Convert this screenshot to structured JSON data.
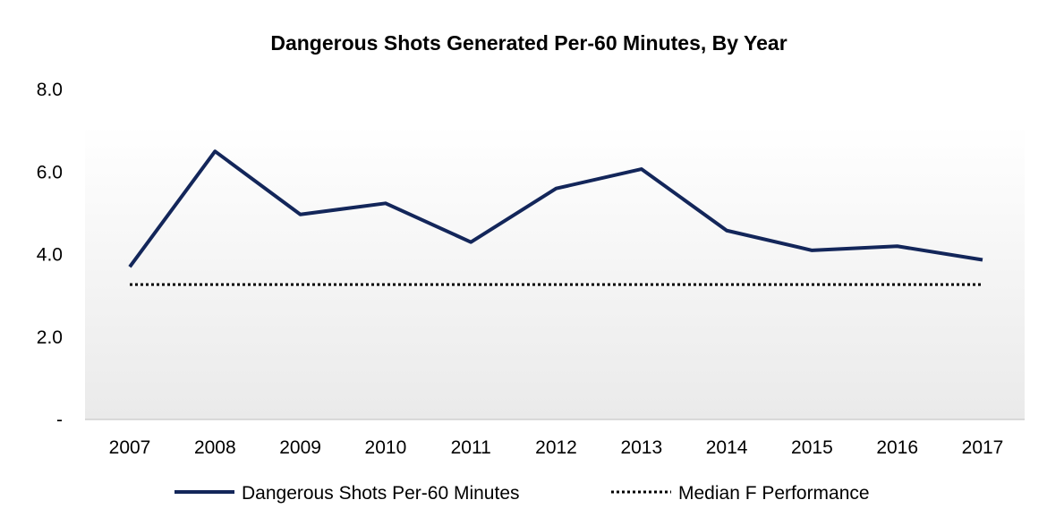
{
  "chart_data": {
    "type": "line",
    "title": "Dangerous Shots Generated Per-60 Minutes, By Year",
    "xlabel": "",
    "ylabel": "",
    "categories": [
      "2007",
      "2008",
      "2009",
      "2010",
      "2011",
      "2012",
      "2013",
      "2014",
      "2015",
      "2016",
      "2017"
    ],
    "series": [
      {
        "name": "Dangerous Shots Per-60 Minutes",
        "values": [
          3.7,
          6.5,
          4.97,
          5.24,
          4.3,
          5.6,
          6.07,
          4.58,
          4.1,
          4.2,
          3.87
        ],
        "color": "#13265a",
        "style": "solid"
      },
      {
        "name": "Median F Performance",
        "values": [
          3.27,
          3.27,
          3.27,
          3.27,
          3.27,
          3.27,
          3.27,
          3.27,
          3.27,
          3.27,
          3.27
        ],
        "color": "#000000",
        "style": "dotted"
      }
    ],
    "ylim": [
      0,
      8
    ],
    "yticks": [
      0,
      2,
      4,
      6,
      8
    ],
    "ytick_labels": [
      "-",
      "2.0",
      "4.0",
      "6.0",
      "8.0"
    ],
    "grid": false,
    "legend": "bottom",
    "background": "vertical gradient from white (top) to light gray (bottom)"
  }
}
